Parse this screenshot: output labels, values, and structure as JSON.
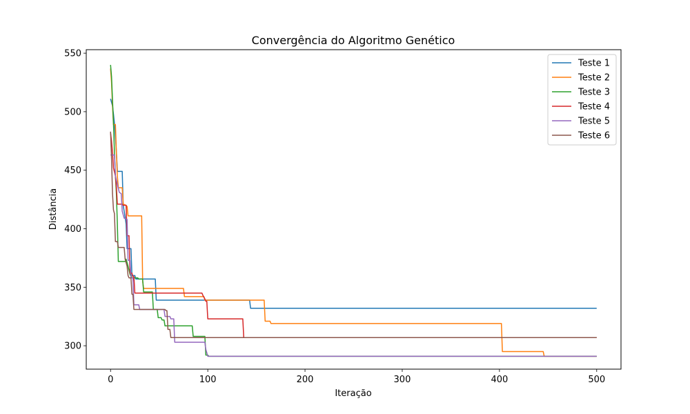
{
  "chart_data": {
    "type": "line",
    "title": "Convergência do Algoritmo Genético",
    "xlabel": "Iteração",
    "ylabel": "Distância",
    "xlim": [
      -25,
      525
    ],
    "ylim": [
      280,
      553
    ],
    "xticks": [
      0,
      100,
      200,
      300,
      400,
      500
    ],
    "yticks": [
      300,
      350,
      400,
      450,
      500,
      550
    ],
    "grid": false,
    "legend_position": "top-right",
    "series": [
      {
        "name": "Teste 1",
        "color": "#1f77b4",
        "points": [
          [
            0,
            511
          ],
          [
            2,
            505
          ],
          [
            3,
            498
          ],
          [
            4,
            490
          ],
          [
            5,
            478
          ],
          [
            6,
            466
          ],
          [
            7,
            449
          ],
          [
            12,
            449
          ],
          [
            13,
            420
          ],
          [
            15,
            410
          ],
          [
            16,
            404
          ],
          [
            17,
            383
          ],
          [
            21,
            383
          ],
          [
            22,
            360
          ],
          [
            25,
            360
          ],
          [
            26,
            357
          ],
          [
            46,
            357
          ],
          [
            47,
            339
          ],
          [
            143,
            339
          ],
          [
            144,
            332
          ],
          [
            500,
            332
          ]
        ]
      },
      {
        "name": "Teste 2",
        "color": "#ff7f0e",
        "points": [
          [
            0,
            537
          ],
          [
            1,
            525
          ],
          [
            2,
            505
          ],
          [
            3,
            489
          ],
          [
            5,
            489
          ],
          [
            6,
            465
          ],
          [
            7,
            445
          ],
          [
            8,
            435
          ],
          [
            12,
            435
          ],
          [
            13,
            421
          ],
          [
            16,
            420
          ],
          [
            17,
            419
          ],
          [
            18,
            411
          ],
          [
            32,
            411
          ],
          [
            33,
            355
          ],
          [
            34,
            349
          ],
          [
            75,
            349
          ],
          [
            76,
            342
          ],
          [
            96,
            342
          ],
          [
            97,
            339
          ],
          [
            158,
            339
          ],
          [
            159,
            321
          ],
          [
            164,
            321
          ],
          [
            165,
            319
          ],
          [
            402,
            319
          ],
          [
            403,
            295
          ],
          [
            445,
            295
          ],
          [
            446,
            291
          ],
          [
            500,
            291
          ]
        ]
      },
      {
        "name": "Teste 3",
        "color": "#2ca02c",
        "points": [
          [
            0,
            540
          ],
          [
            1,
            530
          ],
          [
            2,
            510
          ],
          [
            3,
            490
          ],
          [
            4,
            465
          ],
          [
            5,
            445
          ],
          [
            6,
            430
          ],
          [
            7,
            404
          ],
          [
            8,
            372
          ],
          [
            15,
            372
          ],
          [
            16,
            374
          ],
          [
            18,
            368
          ],
          [
            20,
            361
          ],
          [
            22,
            358
          ],
          [
            28,
            358
          ],
          [
            29,
            357
          ],
          [
            33,
            357
          ],
          [
            34,
            346
          ],
          [
            43,
            346
          ],
          [
            44,
            331
          ],
          [
            48,
            331
          ],
          [
            49,
            324
          ],
          [
            52,
            324
          ],
          [
            53,
            322
          ],
          [
            55,
            322
          ],
          [
            56,
            317
          ],
          [
            84,
            317
          ],
          [
            85,
            308
          ],
          [
            97,
            308
          ],
          [
            98,
            292
          ],
          [
            100,
            292
          ],
          [
            101,
            291
          ],
          [
            500,
            291
          ]
        ]
      },
      {
        "name": "Teste 4",
        "color": "#d62728",
        "points": [
          [
            0,
            482
          ],
          [
            1,
            475
          ],
          [
            2,
            465
          ],
          [
            3,
            452
          ],
          [
            5,
            445
          ],
          [
            6,
            436
          ],
          [
            7,
            421
          ],
          [
            12,
            421
          ],
          [
            13,
            420
          ],
          [
            16,
            420
          ],
          [
            17,
            394
          ],
          [
            19,
            394
          ],
          [
            20,
            362
          ],
          [
            22,
            362
          ],
          [
            23,
            359
          ],
          [
            24,
            359
          ],
          [
            25,
            345
          ],
          [
            94,
            345
          ],
          [
            95,
            343
          ],
          [
            97,
            340
          ],
          [
            98,
            338
          ],
          [
            99,
            338
          ],
          [
            100,
            323
          ],
          [
            136,
            323
          ],
          [
            137,
            307
          ],
          [
            500,
            307
          ]
        ]
      },
      {
        "name": "Teste 5",
        "color": "#9467bd",
        "points": [
          [
            0,
            463
          ],
          [
            4,
            463
          ],
          [
            5,
            445
          ],
          [
            7,
            438
          ],
          [
            9,
            431
          ],
          [
            11,
            430
          ],
          [
            12,
            415
          ],
          [
            14,
            409
          ],
          [
            17,
            408
          ],
          [
            18,
            373
          ],
          [
            20,
            373
          ],
          [
            21,
            358
          ],
          [
            23,
            358
          ],
          [
            24,
            335
          ],
          [
            29,
            335
          ],
          [
            30,
            331
          ],
          [
            55,
            331
          ],
          [
            56,
            325
          ],
          [
            61,
            325
          ],
          [
            62,
            323
          ],
          [
            65,
            323
          ],
          [
            66,
            303
          ],
          [
            97,
            303
          ],
          [
            98,
            297
          ],
          [
            100,
            291
          ],
          [
            500,
            291
          ]
        ]
      },
      {
        "name": "Teste 6",
        "color": "#8c564b",
        "points": [
          [
            0,
            483
          ],
          [
            1,
            460
          ],
          [
            2,
            430
          ],
          [
            3,
            416
          ],
          [
            4,
            413
          ],
          [
            5,
            389
          ],
          [
            7,
            389
          ],
          [
            8,
            384
          ],
          [
            14,
            384
          ],
          [
            15,
            374
          ],
          [
            17,
            368
          ],
          [
            18,
            360
          ],
          [
            19,
            358
          ],
          [
            21,
            358
          ],
          [
            22,
            344
          ],
          [
            23,
            344
          ],
          [
            24,
            331
          ],
          [
            56,
            331
          ],
          [
            57,
            330
          ],
          [
            58,
            330
          ],
          [
            59,
            314
          ],
          [
            61,
            314
          ],
          [
            62,
            307
          ],
          [
            500,
            307
          ]
        ]
      }
    ]
  }
}
